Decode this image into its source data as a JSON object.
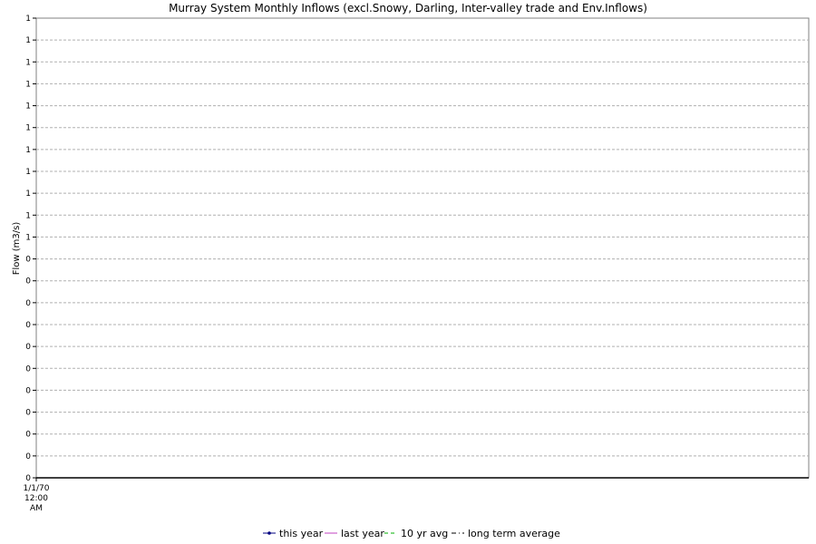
{
  "chart_data": {
    "type": "line",
    "title": "Murray System Monthly Inflows (excl.Snowy, Darling, Inter-valley trade and Env.Inflows)",
    "ylabel": "Flow (m3/s)",
    "xlabel": "",
    "x_ticks": [
      [
        "1/1/70",
        "12:00",
        "AM"
      ]
    ],
    "y_ticks": [
      "0",
      "0",
      "0",
      "0",
      "0",
      "0",
      "0",
      "0",
      "0",
      "0",
      "0",
      "1",
      "1",
      "1",
      "1",
      "1",
      "1",
      "1",
      "1",
      "1",
      "1",
      "1"
    ],
    "grid": true,
    "legend_position": "bottom",
    "series": [
      {
        "name": "this year",
        "color": "#000080",
        "style": "solid-marker",
        "values": []
      },
      {
        "name": "last year",
        "color": "#c040c0",
        "style": "solid",
        "values": []
      },
      {
        "name": "10 yr avg",
        "color": "#00b000",
        "style": "dashed",
        "values": []
      },
      {
        "name": "long term average",
        "color": "#000000",
        "style": "dash-dot",
        "values": []
      }
    ]
  }
}
